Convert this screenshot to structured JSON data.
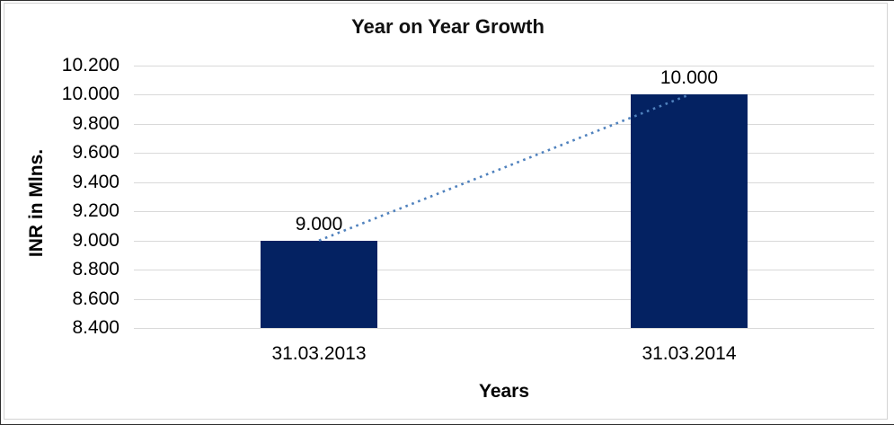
{
  "window": {
    "background": "#ffffff",
    "outer_border_color": "#2e2e2e",
    "frame_border_color": "#d3d3d3"
  },
  "chart_data": {
    "type": "bar",
    "title": "Year on Year Growth",
    "xlabel": "Years",
    "ylabel": "INR in Mlns.",
    "categories": [
      "31.03.2013",
      "31.03.2014"
    ],
    "values": [
      9000,
      10000
    ],
    "value_labels": [
      "9.000",
      "10.000"
    ],
    "ylim": [
      8400,
      10200
    ],
    "ytick_step": 200,
    "ytick_labels": [
      "8.400",
      "8.600",
      "8.800",
      "9.000",
      "9.200",
      "9.400",
      "9.600",
      "9.800",
      "10.000",
      "10.200"
    ],
    "grid": true,
    "legend_position": "none",
    "trendline": {
      "style": "dotted",
      "connects": "bar-top-centers",
      "color": "#4f81bd"
    },
    "colors": {
      "bar": "#042262",
      "gridline": "#d9d9d9",
      "text": "#000000"
    }
  }
}
